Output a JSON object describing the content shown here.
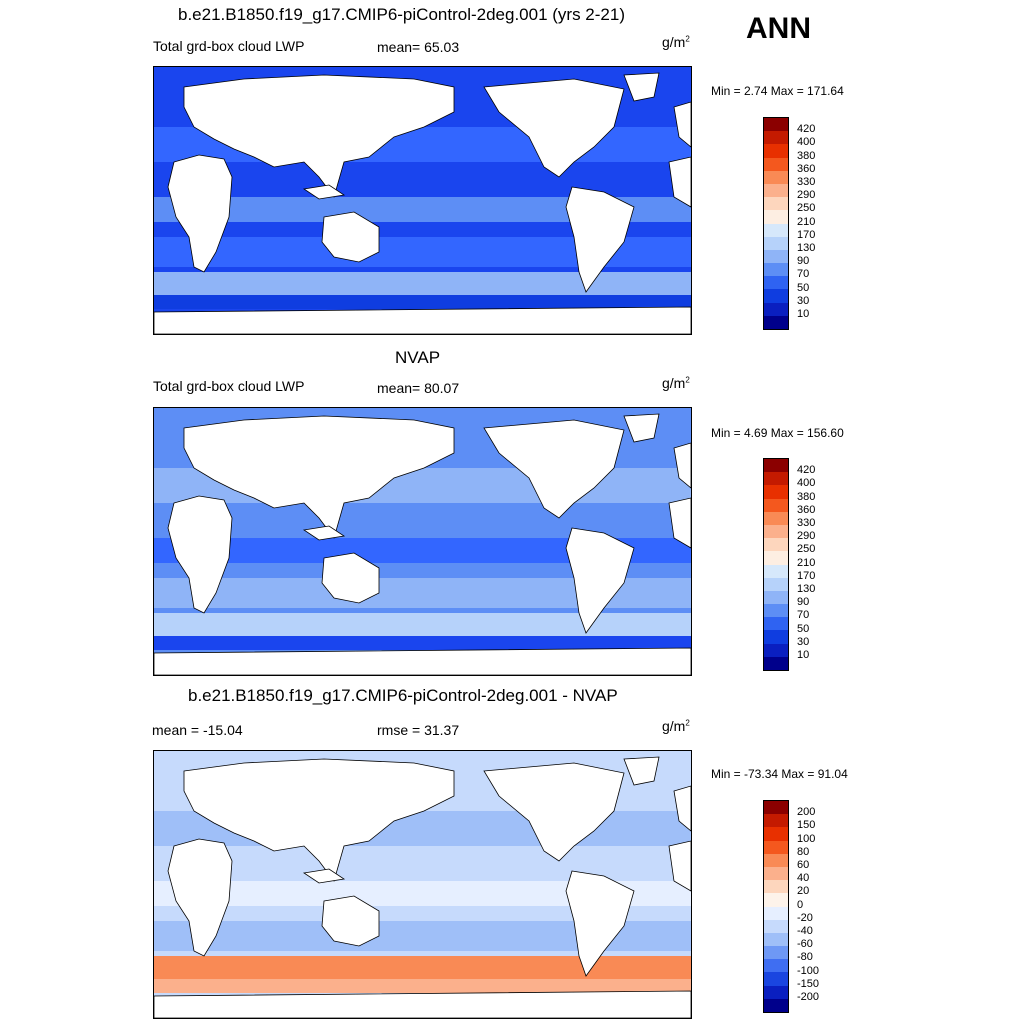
{
  "season": "ANN",
  "panels": [
    {
      "title": "b.e21.B1850.f19_g17.CMIP6-piControl-2deg.001 (yrs 2-21)",
      "left_label": "Total grd-box cloud LWP",
      "center_label": "mean=  65.03",
      "units_base": "g/m",
      "units_exp": "2",
      "minmax": "Min =   2.74 Max = 171.64",
      "levels": [
        "420",
        "400",
        "380",
        "360",
        "330",
        "290",
        "250",
        "210",
        "170",
        "130",
        "90",
        "70",
        "50",
        "30",
        "10"
      ],
      "colors": [
        "#8b0000",
        "#c41a00",
        "#e83000",
        "#f4581e",
        "#f98a55",
        "#fbb08c",
        "#fdd6bd",
        "#fdeee2",
        "#d6e8fb",
        "#b6d2fa",
        "#8fb4f7",
        "#5d8ef5",
        "#2f63f2",
        "#0f3de0",
        "#0a1fc0",
        "#00008b"
      ],
      "map_fill": [
        "#1a45ee",
        "#3366ff",
        "#5d8ef5",
        "#8fb4f7",
        "#0f3de0"
      ]
    },
    {
      "title": "NVAP",
      "left_label": "Total grd-box cloud LWP",
      "center_label": "mean=  80.07",
      "units_base": "g/m",
      "units_exp": "2",
      "minmax": "Min =   4.69 Max = 156.60",
      "levels": [
        "420",
        "400",
        "380",
        "360",
        "330",
        "290",
        "250",
        "210",
        "170",
        "130",
        "90",
        "70",
        "50",
        "30",
        "10"
      ],
      "colors": [
        "#8b0000",
        "#c41a00",
        "#e83000",
        "#f4581e",
        "#f98a55",
        "#fbb08c",
        "#fdd6bd",
        "#fdeee2",
        "#d6e8fb",
        "#b6d2fa",
        "#8fb4f7",
        "#5d8ef5",
        "#2f63f2",
        "#0f3de0",
        "#0a1fc0",
        "#00008b"
      ],
      "map_fill": [
        "#5d8ef5",
        "#8fb4f7",
        "#3366ff",
        "#b6d2fa",
        "#1a45ee"
      ]
    },
    {
      "title": "b.e21.B1850.f19_g17.CMIP6-piControl-2deg.001 - NVAP",
      "left_label": "mean = -15.04",
      "center_label": "rmse =  31.37",
      "units_base": "g/m",
      "units_exp": "2",
      "minmax": "Min = -73.34 Max =  91.04",
      "levels": [
        "200",
        "150",
        "100",
        "80",
        "60",
        "40",
        "20",
        "0",
        "-20",
        "-40",
        "-60",
        "-80",
        "-100",
        "-150",
        "-200"
      ],
      "colors": [
        "#8b0000",
        "#c41a00",
        "#e83000",
        "#f4581e",
        "#f98a55",
        "#fbb08c",
        "#fdd6bd",
        "#fdf3ea",
        "#e6efff",
        "#c6dafc",
        "#9fbff8",
        "#6e98f5",
        "#3f6ef2",
        "#1a45e0",
        "#0a1fc0",
        "#00008b"
      ],
      "map_fill": [
        "#c6dafc",
        "#9fbff8",
        "#e6efff",
        "#f98a55",
        "#fbb08c"
      ]
    }
  ]
}
